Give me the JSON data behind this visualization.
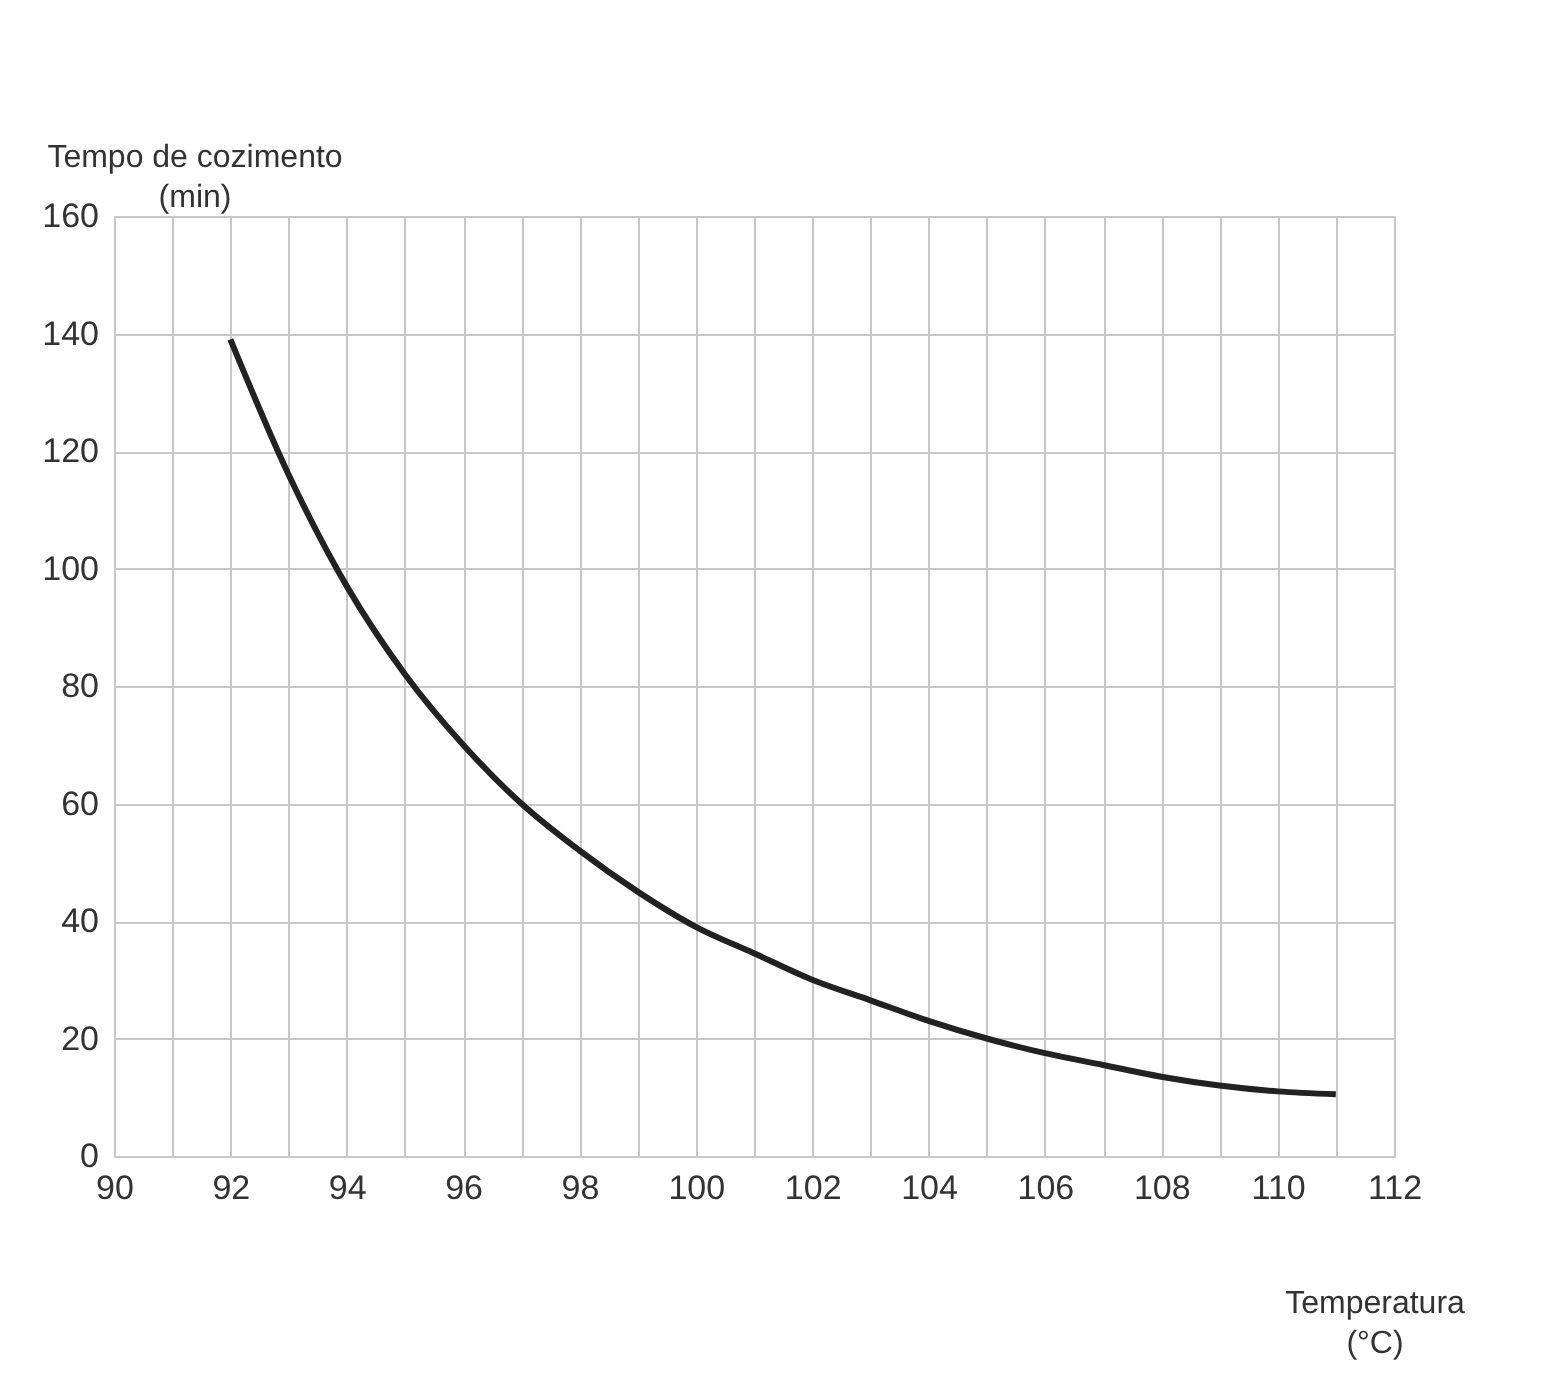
{
  "chart_data": {
    "type": "line",
    "xlabel": "Temperatura\n(°C)",
    "ylabel": "Tempo de cozimento\n(min)",
    "x": [
      92,
      93,
      94,
      95,
      96,
      97,
      98,
      99,
      100,
      101,
      102,
      103,
      104,
      105,
      106,
      107,
      108,
      109,
      110,
      111
    ],
    "series": [
      {
        "color": "#222222",
        "values": [
          139,
          116,
          97,
          82,
          70,
          60,
          52,
          45,
          39,
          34.5,
          30,
          26.5,
          23,
          20,
          17.5,
          15.5,
          13.5,
          12,
          11,
          10.5
        ]
      }
    ],
    "xlim": [
      90,
      112
    ],
    "xticks": [
      90,
      {
        "value": 91,
        "label": null
      },
      92,
      {
        "value": 93,
        "label": null
      },
      94,
      {
        "value": 95,
        "label": null
      },
      96,
      {
        "value": 97,
        "label": null
      },
      98,
      {
        "value": 99,
        "label": null
      },
      100,
      {
        "value": 101,
        "label": null
      },
      102,
      {
        "value": 103,
        "label": null
      },
      104,
      {
        "value": 105,
        "label": null
      },
      106,
      {
        "value": 107,
        "label": null
      },
      108,
      {
        "value": 109,
        "label": null
      },
      110,
      {
        "value": 111,
        "label": null
      },
      112
    ],
    "ylim": [
      0,
      160
    ],
    "yticks": [
      0,
      20,
      40,
      60,
      80,
      100,
      120,
      140,
      160
    ],
    "grid": true,
    "marker": "none",
    "line_style": "solid",
    "legend": false
  }
}
